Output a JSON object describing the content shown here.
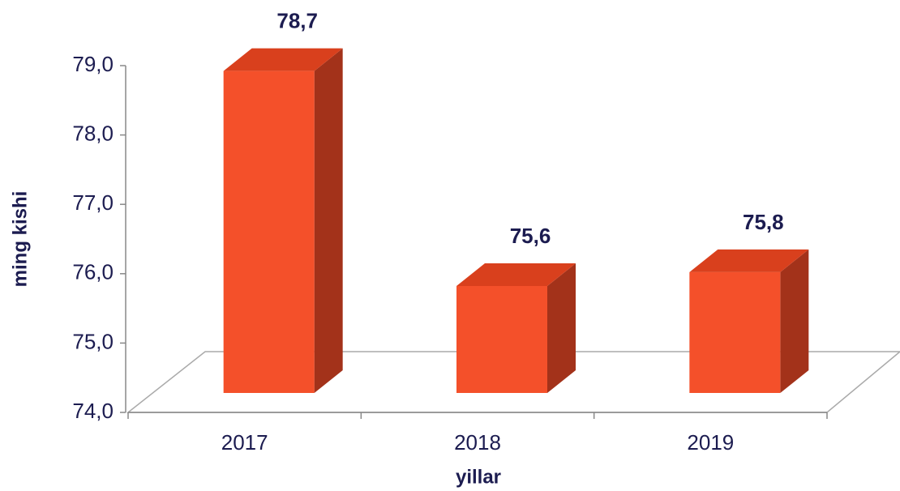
{
  "chart_data": {
    "type": "bar3d",
    "xlabel": "yillar",
    "ylabel": "ming kishi",
    "categories": [
      "2017",
      "2018",
      "2019"
    ],
    "values": [
      78.7,
      75.6,
      75.8
    ],
    "value_labels": [
      "78,7",
      "75,6",
      "75,8"
    ],
    "color": "#f4502a",
    "ylim": [
      74,
      79
    ],
    "yticks": [
      {
        "value": 74,
        "label": "74,0"
      },
      {
        "value": 75,
        "label": "75,0"
      },
      {
        "value": 76,
        "label": "76,0"
      },
      {
        "value": 77,
        "label": "77,0"
      },
      {
        "value": 78,
        "label": "78,0"
      },
      {
        "value": 79,
        "label": "79,0"
      }
    ]
  }
}
